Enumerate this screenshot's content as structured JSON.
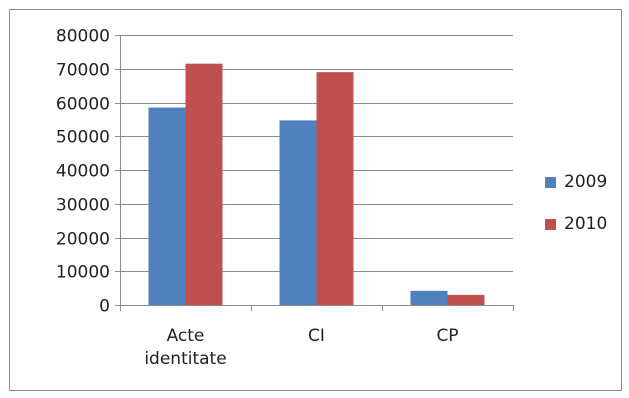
{
  "chart_data": {
    "type": "bar",
    "categories": [
      [
        "Acte",
        "identitate"
      ],
      [
        "CI"
      ],
      [
        "CP"
      ]
    ],
    "series": [
      {
        "name": "2009",
        "color": "#4F81BD",
        "values": [
          58500,
          54700,
          4200
        ]
      },
      {
        "name": "2010",
        "color": "#C0504D",
        "values": [
          71500,
          69000,
          3000
        ]
      }
    ],
    "ylim": [
      0,
      80000
    ],
    "yticks": [
      0,
      10000,
      20000,
      30000,
      40000,
      50000,
      60000,
      70000,
      80000
    ],
    "grid": true,
    "legend_position": "right"
  }
}
